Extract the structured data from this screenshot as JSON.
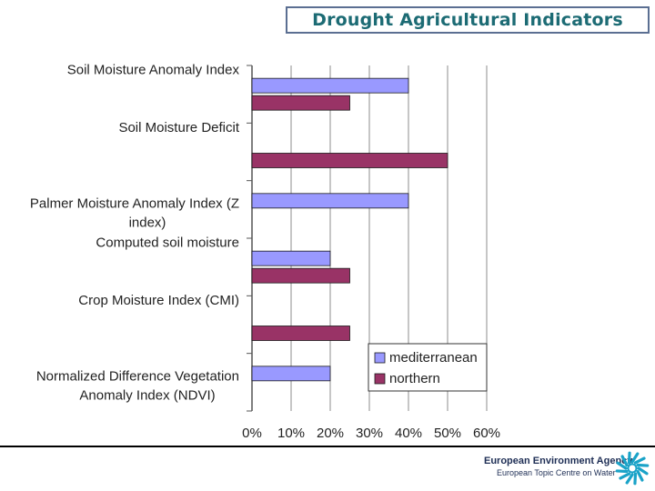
{
  "slide": {
    "title": "Drought Agricultural Indicators"
  },
  "colors": {
    "mediterranean": "#9999ff",
    "northern": "#993366",
    "title_text": "#1c6b74",
    "title_border": "#5b6f92",
    "logo": "#1aa3c8"
  },
  "chart_data": {
    "type": "bar",
    "orientation": "horizontal",
    "categories": [
      [
        "Soil Moisture Anomaly Index"
      ],
      [
        "Soil Moisture Deficit"
      ],
      [
        "Palmer Moisture Anomaly Index (Z",
        "index)"
      ],
      [
        "Computed soil moisture"
      ],
      [
        "Crop Moisture Index (CMI)"
      ],
      [
        "Normalized Difference Vegetation",
        "Anomaly Index (NDVI)"
      ]
    ],
    "series": [
      {
        "name": "mediterranean",
        "values": [
          40,
          0,
          40,
          20,
          0,
          20
        ]
      },
      {
        "name": "northern",
        "values": [
          25,
          50,
          0,
          25,
          25,
          0
        ]
      }
    ],
    "xlim": [
      0,
      60
    ],
    "xticks": [
      "0%",
      "10%",
      "20%",
      "30%",
      "40%",
      "50%",
      "60%"
    ],
    "grid": true,
    "legend_position": "bottom-right"
  },
  "footer": {
    "agency": "European Environment Agency",
    "centre": "European Topic Centre on Water",
    "logo_icon": "eea-logo-icon"
  }
}
